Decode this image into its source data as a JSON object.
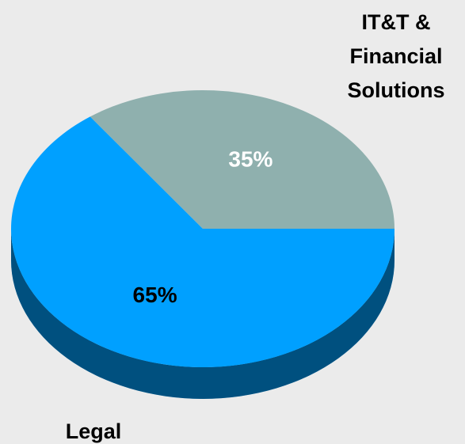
{
  "chart_data": {
    "type": "pie",
    "categories": [
      "IT&T &\nFinancial\nSolutions",
      "Legal"
    ],
    "values": [
      35,
      65
    ],
    "value_labels": [
      "35%",
      "65%"
    ],
    "colors": [
      "#8fb0ae",
      "#00a0ff"
    ],
    "label_colors": [
      "#ffffff",
      "#000000"
    ],
    "start_angle": 0,
    "three_d": true
  }
}
